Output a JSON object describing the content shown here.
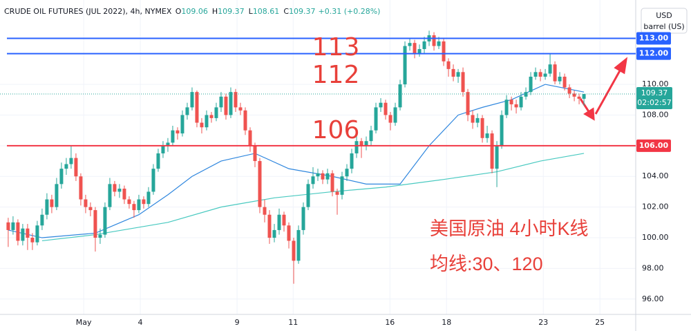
{
  "chart_data": {
    "type": "candlestick",
    "header": {
      "symbol": "CRUDE OIL FUTURES (JUL 2022), 4h, NYMEX",
      "ohlc": [
        {
          "label": "O",
          "value": 109.06
        },
        {
          "label": "H",
          "value": 109.37
        },
        {
          "label": "L",
          "value": 108.61
        },
        {
          "label": "C",
          "value": 109.37
        }
      ],
      "change": "+0.31 (+0.28%)"
    },
    "currency": "USD",
    "unit": "barrel (US)",
    "up_color": "#26a69a",
    "down_color": "#ef5350",
    "xlim": [
      -1.7,
      129.7
    ],
    "xticks": [
      {
        "value": 15.6,
        "label": "May"
      },
      {
        "value": 27.3,
        "label": "4"
      },
      {
        "value": 47.3,
        "label": "9"
      },
      {
        "value": 58.9,
        "label": "11"
      },
      {
        "value": 78.9,
        "label": "16"
      },
      {
        "value": 90.6,
        "label": "18"
      },
      {
        "value": 110.6,
        "label": "23"
      },
      {
        "value": 122.3,
        "label": "25"
      }
    ],
    "ylim": [
      95,
      115.5
    ],
    "yticks": [
      {
        "value": 96,
        "label": "96.00"
      },
      {
        "value": 98,
        "label": "98.00"
      },
      {
        "value": 100,
        "label": "100.00"
      },
      {
        "value": 102,
        "label": "102.00"
      },
      {
        "value": 104,
        "label": "104.00"
      },
      {
        "value": 106,
        "label": "106.00"
      },
      {
        "value": 108,
        "label": "108.00"
      },
      {
        "value": 110,
        "label": "110.00"
      }
    ],
    "candles": [
      [
        101,
        101.3,
        99.4,
        100.5
      ],
      [
        100.5,
        101.4,
        100.2,
        101
      ],
      [
        101,
        101.2,
        99.5,
        99.8
      ],
      [
        99.8,
        100.9,
        99.5,
        100.6
      ],
      [
        100.6,
        100.9,
        99.2,
        100
      ],
      [
        100,
        100.3,
        99.2,
        99.7
      ],
      [
        99.7,
        101.1,
        99.5,
        100.8
      ],
      [
        100.8,
        101.9,
        100.5,
        101.5
      ],
      [
        101.5,
        102.9,
        101.2,
        102.5
      ],
      [
        102.5,
        102.8,
        101.6,
        102
      ],
      [
        102,
        103.9,
        101.8,
        103.5
      ],
      [
        103.5,
        104.9,
        103.2,
        104.5
      ],
      [
        104.5,
        105.2,
        104.1,
        104.8
      ],
      [
        104.8,
        106,
        104.5,
        105.2
      ],
      [
        105.2,
        105.5,
        103.7,
        104
      ],
      [
        104,
        104.2,
        102.1,
        102.5
      ],
      [
        102.5,
        102.8,
        101.6,
        102
      ],
      [
        102,
        102.3,
        101.4,
        101.8
      ],
      [
        101.8,
        102,
        99.1,
        100
      ],
      [
        100,
        100.6,
        99.6,
        100.2
      ],
      [
        100.2,
        102.3,
        100,
        102
      ],
      [
        102,
        103.9,
        101.8,
        103.5
      ],
      [
        103.5,
        103.7,
        102.7,
        103
      ],
      [
        103,
        103.5,
        102.6,
        103.2
      ],
      [
        103.2,
        103.4,
        102.2,
        102.5
      ],
      [
        102.5,
        102.7,
        101.9,
        102.2
      ],
      [
        102.2,
        102.4,
        101.3,
        101.8
      ],
      [
        101.8,
        102.8,
        101.6,
        102.5
      ],
      [
        102.5,
        102.7,
        101.9,
        102.2
      ],
      [
        102.2,
        103.3,
        102,
        103
      ],
      [
        103,
        104.8,
        102.8,
        104.5
      ],
      [
        104.5,
        105.8,
        104.3,
        105.5
      ],
      [
        105.5,
        106.3,
        105.2,
        106
      ],
      [
        106,
        106.5,
        105.6,
        106.2
      ],
      [
        106.2,
        107.3,
        106,
        107
      ],
      [
        107,
        107.2,
        106.4,
        106.8
      ],
      [
        106.8,
        108.3,
        106.6,
        108
      ],
      [
        108,
        108.8,
        107.7,
        108.5
      ],
      [
        108.5,
        109.8,
        108.3,
        109.5
      ],
      [
        109.5,
        109.6,
        107.2,
        107.5
      ],
      [
        107.5,
        107.8,
        106.8,
        107.2
      ],
      [
        107.2,
        108.3,
        107,
        108
      ],
      [
        108,
        108.2,
        107.5,
        107.8
      ],
      [
        107.8,
        108.8,
        107.6,
        108.5
      ],
      [
        108.5,
        109.5,
        108.2,
        109.2
      ],
      [
        109.2,
        109.4,
        107.7,
        108
      ],
      [
        108,
        109.8,
        107.8,
        109.5
      ],
      [
        109.5,
        109.7,
        108.2,
        108.5
      ],
      [
        108.5,
        108.8,
        108,
        108.3
      ],
      [
        108.3,
        108.5,
        106.7,
        107
      ],
      [
        107,
        107.2,
        105.6,
        106
      ],
      [
        106,
        106.2,
        104.6,
        105
      ],
      [
        105,
        105.2,
        101.6,
        102
      ],
      [
        102,
        102.5,
        101,
        101.5
      ],
      [
        101.5,
        101.8,
        99.6,
        100
      ],
      [
        100,
        100.9,
        99.7,
        100.5
      ],
      [
        100.5,
        101.9,
        100.2,
        101.5
      ],
      [
        101.5,
        101.7,
        100.4,
        100.8
      ],
      [
        100.8,
        101,
        99.3,
        99.8
      ],
      [
        99.8,
        100,
        97,
        98.5
      ],
      [
        98.5,
        100.8,
        98.3,
        100.5
      ],
      [
        100.5,
        102.3,
        100.2,
        102
      ],
      [
        102,
        103.8,
        101.8,
        103.5
      ],
      [
        103.5,
        104.6,
        103.2,
        104
      ],
      [
        104,
        104.5,
        103.7,
        104.2
      ],
      [
        104.2,
        104.4,
        103.5,
        103.8
      ],
      [
        103.8,
        104.5,
        103.5,
        104.2
      ],
      [
        104.2,
        104.4,
        102.7,
        103
      ],
      [
        103,
        103.2,
        101.5,
        102.8
      ],
      [
        102.8,
        104.3,
        102.5,
        104
      ],
      [
        104,
        104.8,
        103.7,
        104.5
      ],
      [
        104.5,
        105.8,
        104.2,
        105.5
      ],
      [
        105.5,
        106.6,
        105.2,
        106.3
      ],
      [
        106.3,
        106.5,
        105.2,
        106
      ],
      [
        106,
        106.6,
        105.7,
        106.3
      ],
      [
        106.3,
        107.3,
        106,
        107
      ],
      [
        107,
        108.8,
        106.8,
        108.5
      ],
      [
        108.5,
        109.1,
        108.2,
        108.8
      ],
      [
        108.8,
        109,
        107.7,
        108
      ],
      [
        108,
        108.2,
        107,
        107.5
      ],
      [
        107.5,
        108.8,
        107.3,
        108.5
      ],
      [
        108.5,
        110.3,
        108.3,
        110
      ],
      [
        110,
        112.8,
        109.8,
        112.5
      ],
      [
        112.5,
        113,
        112.2,
        112.7
      ],
      [
        112.7,
        112.9,
        111.7,
        112
      ],
      [
        112,
        112.6,
        111.8,
        112.3
      ],
      [
        112.3,
        113.1,
        112,
        112.8
      ],
      [
        112.8,
        113.5,
        112.5,
        113.2
      ],
      [
        113.2,
        113.4,
        112.2,
        112.5
      ],
      [
        112.5,
        113.1,
        112.3,
        112.8
      ],
      [
        112.8,
        113,
        111.2,
        111.5
      ],
      [
        111.5,
        111.7,
        110.5,
        111
      ],
      [
        111,
        111.3,
        110.2,
        110.5
      ],
      [
        110.5,
        111,
        110.1,
        110.8
      ],
      [
        110.8,
        111.1,
        109.2,
        109.5
      ],
      [
        109.5,
        109.7,
        107.6,
        108
      ],
      [
        108,
        108.3,
        107.1,
        107.5
      ],
      [
        107.5,
        108.1,
        107.2,
        107.8
      ],
      [
        107.8,
        108,
        106.2,
        106.5
      ],
      [
        106.5,
        107.3,
        106.2,
        106.8
      ],
      [
        106.8,
        107,
        104.2,
        104.5
      ],
      [
        104.5,
        106.3,
        103.3,
        106
      ],
      [
        106,
        108.3,
        105.8,
        108
      ],
      [
        108,
        109.3,
        107.8,
        109
      ],
      [
        109,
        109.2,
        108.3,
        108.7
      ],
      [
        108.7,
        109,
        108.1,
        108.5
      ],
      [
        108.5,
        109.5,
        108.3,
        109.2
      ],
      [
        109.2,
        109.8,
        109,
        109.5
      ],
      [
        109.5,
        110.8,
        109.3,
        110.5
      ],
      [
        110.5,
        111.1,
        110.3,
        110.8
      ],
      [
        110.8,
        111,
        110.2,
        110.5
      ],
      [
        110.5,
        111,
        110.3,
        110.7
      ],
      [
        110.7,
        112,
        110.5,
        111.3
      ],
      [
        111.3,
        111.5,
        110,
        110.2
      ],
      [
        110.2,
        110.8,
        110,
        110.5
      ],
      [
        110.5,
        110.7,
        109.6,
        109.8
      ],
      [
        109.8,
        110,
        109.1,
        109.4
      ],
      [
        109.4,
        109.6,
        108.9,
        109.2
      ],
      [
        109.2,
        109.4,
        108.7,
        109.06
      ],
      [
        109.06,
        109.37,
        108.61,
        109.37
      ]
    ],
    "moving_averages": [
      {
        "color": "#2e86de",
        "x": [
          0,
          7,
          18,
          27,
          33,
          38,
          44,
          51,
          58,
          67,
          74,
          81,
          87,
          93,
          98,
          104,
          111,
          119
        ],
        "values": [
          100.5,
          100,
          100.3,
          101.5,
          102.8,
          104,
          105,
          105.5,
          104.5,
          104,
          103.5,
          103.5,
          106,
          108,
          108.5,
          109,
          110,
          109.5
        ]
      },
      {
        "color": "#48c9c0",
        "x": [
          7,
          18,
          33,
          44,
          55,
          67,
          78,
          90,
          101,
          110,
          119
        ],
        "values": [
          99.8,
          100.2,
          101,
          102,
          102.6,
          103,
          103.3,
          103.8,
          104.3,
          105,
          105.5
        ]
      }
    ],
    "levels": [
      {
        "value": 113,
        "label": "113.00",
        "color": "#2962ff"
      },
      {
        "value": 112,
        "label": "112.00",
        "color": "#2962ff"
      },
      {
        "value": 106,
        "label": "106.00",
        "color": "#f23645"
      }
    ],
    "last_price": {
      "value": 109.37,
      "countdown": "02:02:57",
      "color": "#26a69a"
    },
    "annotations": [
      "113",
      "112",
      "106"
    ],
    "notes": [
      "美国原油 4小时K线",
      "均线:30、120"
    ]
  }
}
